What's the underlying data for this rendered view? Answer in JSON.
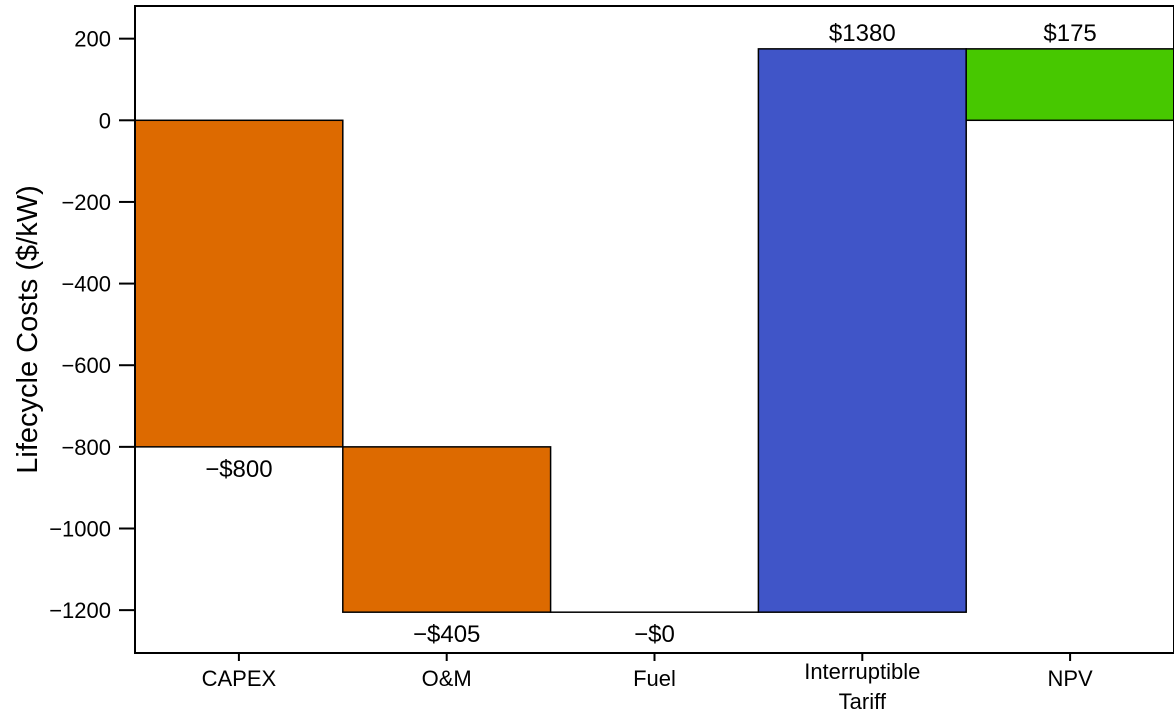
{
  "chart_data": {
    "type": "bar",
    "subtype": "waterfall",
    "title": "",
    "xlabel": "",
    "ylabel": "Lifecycle Costs ($/kW)",
    "ylim": [
      -1305,
      280
    ],
    "yticks": [
      200,
      0,
      -200,
      -400,
      -600,
      -800,
      -1000,
      -1200
    ],
    "grid": false,
    "legend": "none",
    "categories": [
      {
        "label": [
          "CAPEX"
        ],
        "base": 0,
        "end": -800,
        "value": -800,
        "value_label": "−$800",
        "label_pos": "below",
        "color": "#dd6a00"
      },
      {
        "label": [
          "O&M"
        ],
        "base": -800,
        "end": -1205,
        "value": -405,
        "value_label": "−$405",
        "label_pos": "below",
        "color": "#dd6a00"
      },
      {
        "label": [
          "Fuel"
        ],
        "base": -1205,
        "end": -1205,
        "value": 0,
        "value_label": "−$0",
        "label_pos": "below",
        "color": "#dd6a00"
      },
      {
        "label": [
          "Interruptible",
          "Tariff"
        ],
        "base": -1205,
        "end": 175,
        "value": 1380,
        "value_label": "$1380",
        "label_pos": "above",
        "color": "#4055c8"
      },
      {
        "label": [
          "NPV"
        ],
        "base": 0,
        "end": 175,
        "value": 175,
        "value_label": "$175",
        "label_pos": "above",
        "color": "#47c800"
      }
    ]
  }
}
